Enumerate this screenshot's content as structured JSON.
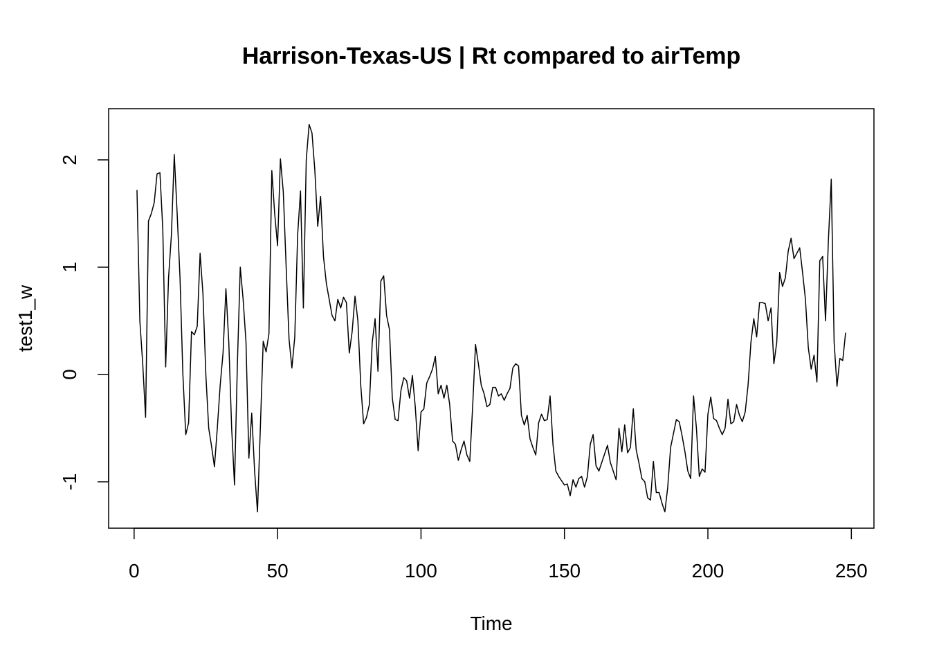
{
  "chart_data": {
    "type": "line",
    "title": "Harrison-Texas-US | Rt compared to airTemp",
    "x_label": "Time",
    "y_label": "test1_w",
    "x": [
      1,
      2,
      3,
      4,
      5,
      6,
      7,
      8,
      9,
      10,
      11,
      12,
      13,
      14,
      15,
      16,
      17,
      18,
      19,
      20,
      21,
      22,
      23,
      24,
      25,
      26,
      27,
      28,
      29,
      30,
      31,
      32,
      33,
      34,
      35,
      36,
      37,
      38,
      39,
      40,
      41,
      42,
      43,
      44,
      45,
      46,
      47,
      48,
      49,
      50,
      51,
      52,
      53,
      54,
      55,
      56,
      57,
      58,
      59,
      60,
      61,
      62,
      63,
      64,
      65,
      66,
      67,
      68,
      69,
      70,
      71,
      72,
      73,
      74,
      75,
      76,
      77,
      78,
      79,
      80,
      81,
      82,
      83,
      84,
      85,
      86,
      87,
      88,
      89,
      90,
      91,
      92,
      93,
      94,
      95,
      96,
      97,
      98,
      99,
      100,
      101,
      102,
      103,
      104,
      105,
      106,
      107,
      108,
      109,
      110,
      111,
      112,
      113,
      114,
      115,
      116,
      117,
      118,
      119,
      120,
      121,
      122,
      123,
      124,
      125,
      126,
      127,
      128,
      129,
      130,
      131,
      132,
      133,
      134,
      135,
      136,
      137,
      138,
      139,
      140,
      141,
      142,
      143,
      144,
      145,
      146,
      147,
      148,
      149,
      150,
      151,
      152,
      153,
      154,
      155,
      156,
      157,
      158,
      159,
      160,
      161,
      162,
      163,
      164,
      165,
      166,
      167,
      168,
      169,
      170,
      171,
      172,
      173,
      174,
      175,
      176,
      177,
      178,
      179,
      180,
      181,
      182,
      183,
      184,
      185,
      186,
      187,
      188,
      189,
      190,
      191,
      192,
      193,
      194,
      195,
      196,
      197,
      198,
      199,
      200,
      201,
      202,
      203,
      204,
      205,
      206,
      207,
      208,
      209,
      210,
      211,
      212,
      213,
      214,
      215,
      216,
      217,
      218,
      219,
      220,
      221,
      222,
      223,
      224,
      225,
      226,
      227,
      228,
      229,
      230,
      231,
      232,
      233,
      234,
      235,
      236,
      237,
      238,
      239,
      240,
      241,
      242,
      243,
      244,
      245,
      246,
      247,
      248
    ],
    "series": [
      {
        "name": "test1_w",
        "color": "#000000",
        "values": [
          1.72,
          0.5,
          0.1,
          -0.4,
          1.43,
          1.5,
          1.6,
          1.87,
          1.88,
          1.35,
          0.07,
          0.9,
          1.3,
          2.05,
          1.5,
          0.9,
          0.0,
          -0.56,
          -0.45,
          0.4,
          0.37,
          0.45,
          1.13,
          0.75,
          0.0,
          -0.5,
          -0.67,
          -0.86,
          -0.5,
          -0.1,
          0.2,
          0.8,
          0.3,
          -0.5,
          -1.03,
          0.1,
          1.0,
          0.7,
          0.3,
          -0.78,
          -0.36,
          -0.9,
          -1.28,
          -0.5,
          0.31,
          0.21,
          0.38,
          1.9,
          1.5,
          1.2,
          2.01,
          1.7,
          1.0,
          0.33,
          0.06,
          0.35,
          1.3,
          1.71,
          0.62,
          2.0,
          2.33,
          2.25,
          1.9,
          1.38,
          1.66,
          1.1,
          0.85,
          0.7,
          0.55,
          0.5,
          0.7,
          0.62,
          0.72,
          0.67,
          0.2,
          0.4,
          0.73,
          0.5,
          -0.1,
          -0.46,
          -0.4,
          -0.28,
          0.3,
          0.52,
          0.03,
          0.87,
          0.92,
          0.55,
          0.42,
          -0.22,
          -0.42,
          -0.43,
          -0.15,
          -0.03,
          -0.06,
          -0.22,
          -0.01,
          -0.3,
          -0.71,
          -0.35,
          -0.32,
          -0.08,
          -0.02,
          0.05,
          0.17,
          -0.18,
          -0.1,
          -0.22,
          -0.1,
          -0.28,
          -0.62,
          -0.65,
          -0.8,
          -0.7,
          -0.62,
          -0.75,
          -0.81,
          -0.3,
          0.28,
          0.1,
          -0.1,
          -0.18,
          -0.3,
          -0.28,
          -0.12,
          -0.12,
          -0.2,
          -0.18,
          -0.24,
          -0.18,
          -0.13,
          0.06,
          0.1,
          0.08,
          -0.38,
          -0.47,
          -0.38,
          -0.6,
          -0.68,
          -0.75,
          -0.45,
          -0.37,
          -0.43,
          -0.42,
          -0.2,
          -0.65,
          -0.9,
          -0.95,
          -0.99,
          -1.03,
          -1.02,
          -1.13,
          -0.98,
          -1.05,
          -0.97,
          -0.95,
          -1.05,
          -0.95,
          -0.65,
          -0.56,
          -0.85,
          -0.9,
          -0.82,
          -0.74,
          -0.66,
          -0.82,
          -0.9,
          -0.98,
          -0.5,
          -0.72,
          -0.47,
          -0.73,
          -0.68,
          -0.32,
          -0.7,
          -0.83,
          -0.97,
          -1.0,
          -1.15,
          -1.17,
          -0.81,
          -1.1,
          -1.1,
          -1.2,
          -1.28,
          -1.05,
          -0.68,
          -0.55,
          -0.42,
          -0.44,
          -0.57,
          -0.72,
          -0.9,
          -0.97,
          -0.2,
          -0.5,
          -0.95,
          -0.88,
          -0.91,
          -0.37,
          -0.21,
          -0.41,
          -0.43,
          -0.5,
          -0.56,
          -0.5,
          -0.23,
          -0.46,
          -0.44,
          -0.28,
          -0.38,
          -0.44,
          -0.35,
          -0.1,
          0.3,
          0.52,
          0.35,
          0.67,
          0.67,
          0.66,
          0.5,
          0.62,
          0.1,
          0.3,
          0.95,
          0.82,
          0.9,
          1.15,
          1.27,
          1.08,
          1.13,
          1.18,
          0.95,
          0.7,
          0.25,
          0.05,
          0.18,
          -0.07,
          1.06,
          1.1,
          0.5,
          1.25,
          1.82,
          0.3,
          -0.11,
          0.15,
          0.13,
          0.39
        ]
      }
    ],
    "xlim": [
      -8.88,
      257.88
    ],
    "ylim": [
      -1.432,
      2.477
    ],
    "xticks": [
      0,
      50,
      100,
      150,
      200,
      250
    ],
    "yticks": [
      -1,
      0,
      1,
      2
    ]
  }
}
